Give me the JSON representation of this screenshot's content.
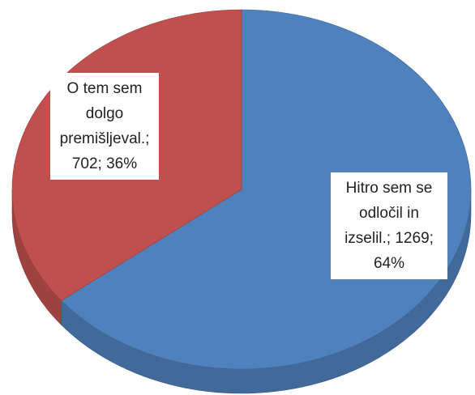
{
  "chart_data": {
    "type": "pie",
    "categories": [
      "Hitro sem se odločil in izselil.",
      "O tem sem dolgo premišljeval."
    ],
    "values": [
      1269,
      702
    ],
    "percents": [
      64,
      36
    ],
    "value_labels": [
      "Hitro sem se odločil in izselil.; 1269; 64%",
      "O tem sem dolgo premišljeval.; 702; 36%"
    ],
    "colors": [
      "#4f81bd",
      "#c0504d"
    ]
  }
}
